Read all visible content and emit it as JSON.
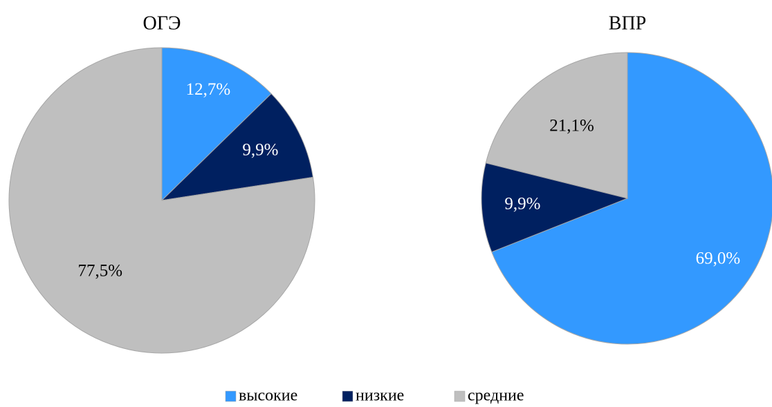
{
  "categories": [
    "высокие",
    "низкие",
    "средние"
  ],
  "colors": [
    "#3399ff",
    "#002060",
    "#bfbfbf"
  ],
  "chart_data": [
    {
      "type": "pie",
      "title": "ОГЭ",
      "values": [
        12.7,
        9.9,
        77.5
      ],
      "value_labels": [
        "12,7%",
        "9,9%",
        "77,5%"
      ]
    },
    {
      "type": "pie",
      "title": "ВПР",
      "values": [
        69.0,
        9.9,
        21.1
      ],
      "value_labels": [
        "69,0%",
        "9,9%",
        "21,1%"
      ]
    }
  ]
}
